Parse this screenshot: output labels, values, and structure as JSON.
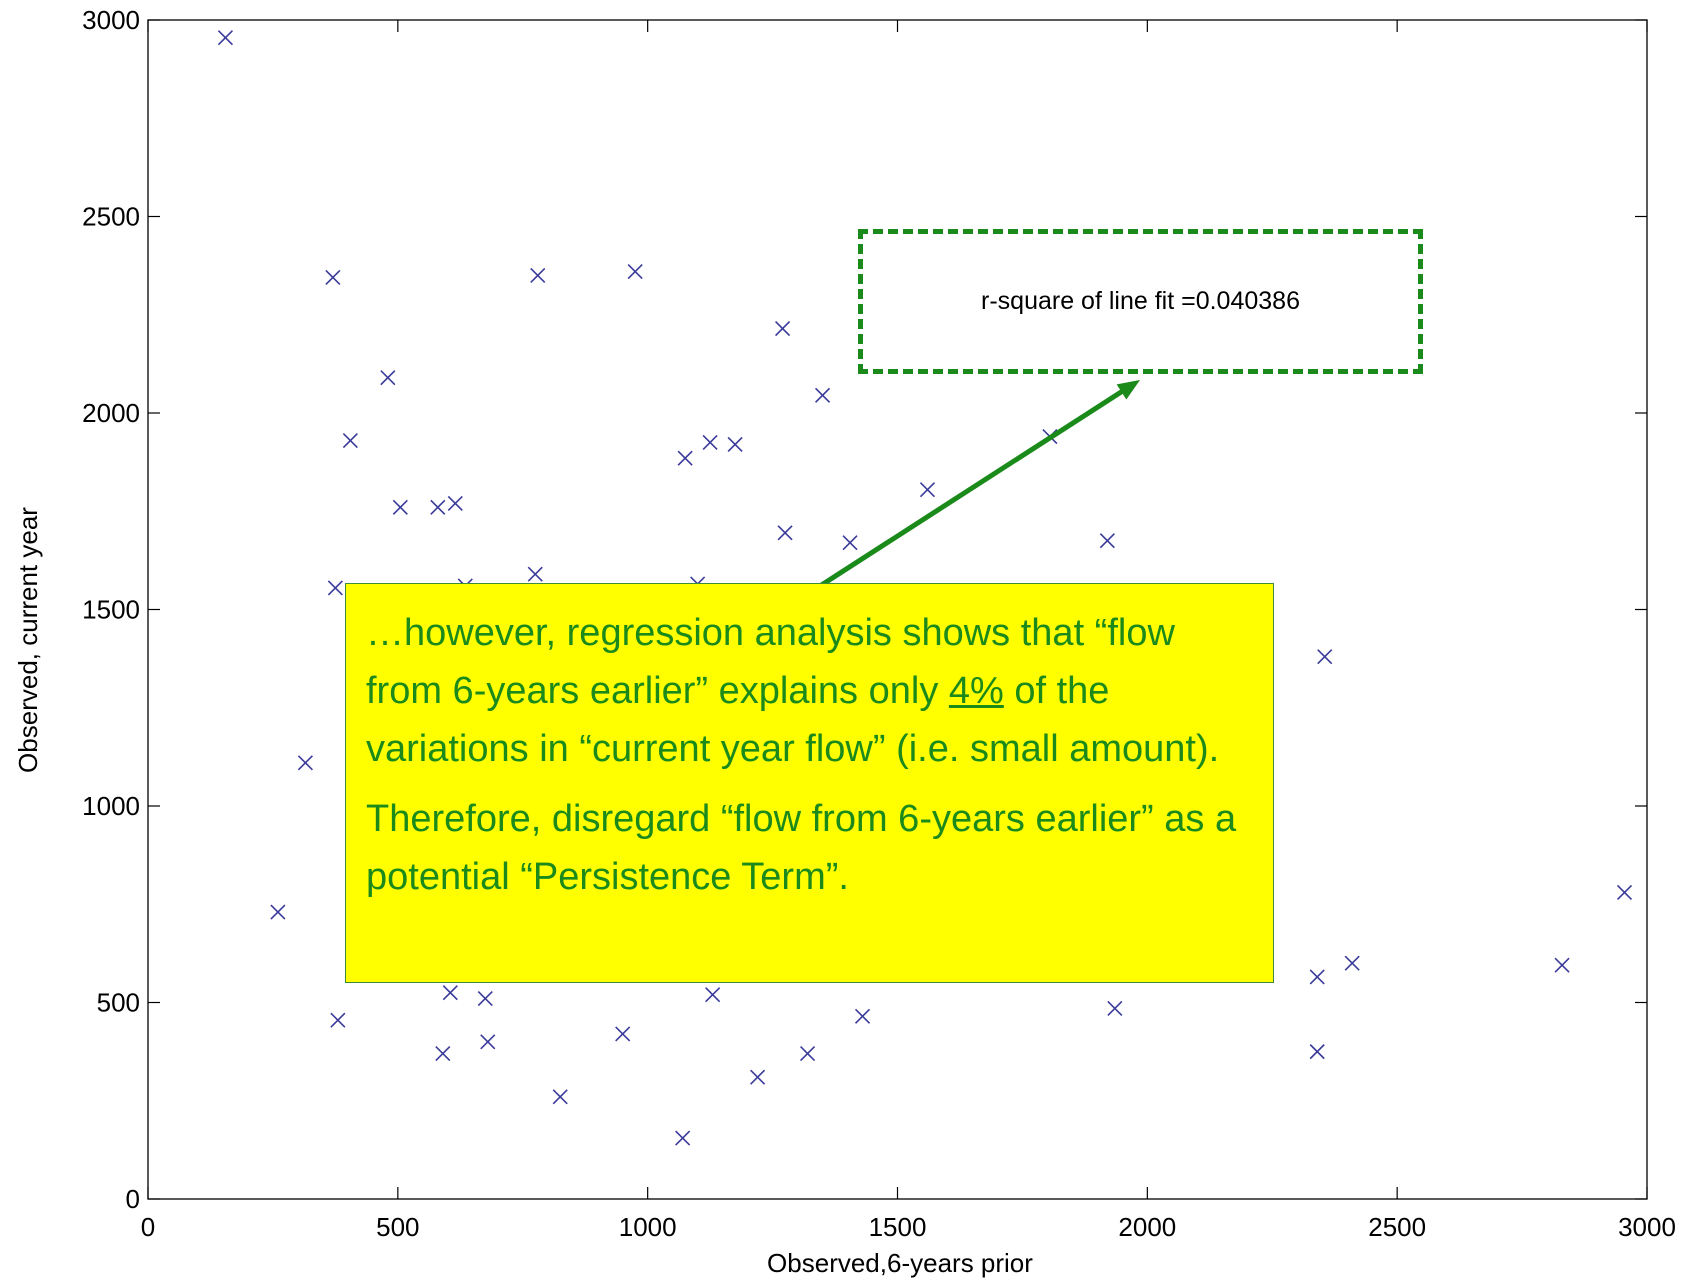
{
  "chart_data": {
    "type": "scatter",
    "title": "",
    "xlabel": "Observed,6-years prior",
    "ylabel": "Observed, current year",
    "xlim": [
      0,
      3000
    ],
    "ylim": [
      0,
      3000
    ],
    "xticks": [
      "0",
      "500",
      "1000",
      "1500",
      "2000",
      "2500",
      "3000"
    ],
    "yticks": [
      "0",
      "500",
      "1000",
      "1500",
      "2000",
      "2500",
      "3000"
    ],
    "marker": "x",
    "marker_color": "#3a3a9a",
    "series": [
      {
        "points": [
          [
            155,
            2955
          ],
          [
            260,
            730
          ],
          [
            315,
            1110
          ],
          [
            370,
            2345
          ],
          [
            375,
            1555
          ],
          [
            380,
            455
          ],
          [
            405,
            1930
          ],
          [
            480,
            2090
          ],
          [
            505,
            1760
          ],
          [
            580,
            1760
          ],
          [
            590,
            370
          ],
          [
            605,
            525
          ],
          [
            615,
            1770
          ],
          [
            635,
            1560
          ],
          [
            675,
            510
          ],
          [
            680,
            400
          ],
          [
            775,
            1590
          ],
          [
            780,
            2350
          ],
          [
            825,
            260
          ],
          [
            950,
            420
          ],
          [
            975,
            2360
          ],
          [
            1070,
            155
          ],
          [
            1075,
            1885
          ],
          [
            1100,
            1565
          ],
          [
            1125,
            1925
          ],
          [
            1130,
            520
          ],
          [
            1175,
            1920
          ],
          [
            1220,
            310
          ],
          [
            1270,
            2215
          ],
          [
            1275,
            1695
          ],
          [
            1320,
            370
          ],
          [
            1350,
            2045
          ],
          [
            1405,
            1670
          ],
          [
            1430,
            465
          ],
          [
            1560,
            1805
          ],
          [
            1805,
            1940
          ],
          [
            1920,
            1675
          ],
          [
            1935,
            485
          ],
          [
            2340,
            565
          ],
          [
            2340,
            375
          ],
          [
            2355,
            1380
          ],
          [
            2410,
            600
          ],
          [
            2830,
            595
          ],
          [
            2955,
            780
          ]
        ]
      }
    ],
    "grid": false
  },
  "annotations": {
    "rsquare_text": "r-square of line fit =0.040386",
    "note_line1_pre": "…however, regression analysis shows that “flow from 6-years earlier” explains only ",
    "note_line1_pct": "4%",
    "note_line1_post": " of the variations in “current year flow” (i.e. small amount).",
    "note_line2": "Therefore, disregard “flow from 6-years earlier” as a potential “Persistence Term”.",
    "arrow_color": "#1a8a1a",
    "box_color": "#ffff00",
    "text_color": "#1b8a1b"
  }
}
